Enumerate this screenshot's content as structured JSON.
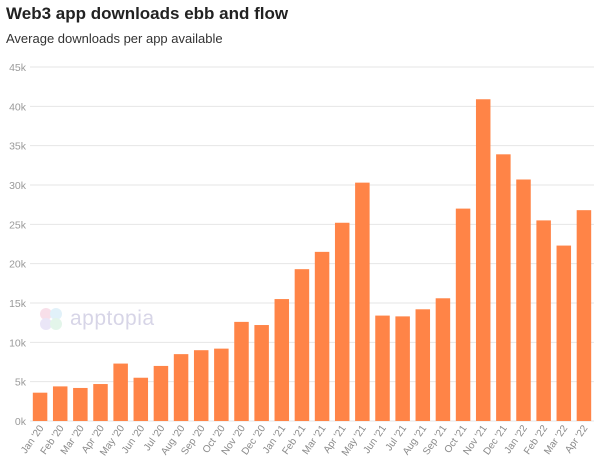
{
  "title": "Web3 app downloads ebb and flow",
  "subtitle": "Average downloads per app available",
  "watermark": "apptopia",
  "colors": {
    "bar": "#ff8447",
    "grid": "#e6e6e6",
    "axis_text": "#9a9a9a"
  },
  "chart_data": {
    "type": "bar",
    "title": "Web3 app downloads ebb and flow",
    "subtitle": "Average downloads per app available",
    "xlabel": "",
    "ylabel": "",
    "ylim": [
      0,
      45000
    ],
    "yticks": [
      0,
      5000,
      10000,
      15000,
      20000,
      25000,
      30000,
      35000,
      40000,
      45000
    ],
    "ytick_labels": [
      "0k",
      "5k",
      "10k",
      "15k",
      "20k",
      "25k",
      "30k",
      "35k",
      "40k",
      "45k"
    ],
    "grid": true,
    "categories": [
      "Jan '20",
      "Feb '20",
      "Mar '20",
      "Apr '20",
      "May '20",
      "Jun '20",
      "Jul '20",
      "Aug '20",
      "Sep '20",
      "Oct '20",
      "Nov '20",
      "Dec '20",
      "Jan '21",
      "Feb '21",
      "Mar '21",
      "Apr '21",
      "May '21",
      "Jun '21",
      "Jul '21",
      "Aug '21",
      "Sep '21",
      "Oct '21",
      "Nov '21",
      "Dec '21",
      "Jan '22",
      "Feb '22",
      "Mar '22",
      "Apr '22"
    ],
    "values": [
      3600,
      4400,
      4200,
      4700,
      7300,
      5500,
      7000,
      8500,
      9000,
      9200,
      12600,
      12200,
      15500,
      19300,
      21500,
      25200,
      30300,
      13400,
      13300,
      14200,
      15600,
      27000,
      40900,
      33900,
      30700,
      25500,
      22300,
      26800
    ]
  }
}
